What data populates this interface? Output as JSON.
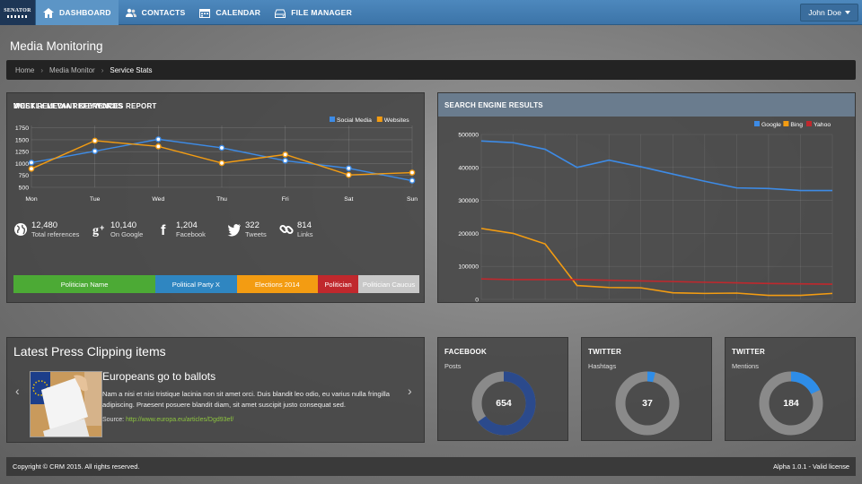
{
  "brand": {
    "logo_text": "SENATOR"
  },
  "nav": {
    "items": [
      {
        "label": "DASHBOARD",
        "icon": "home-icon"
      },
      {
        "label": "CONTACTS",
        "icon": "users-icon"
      },
      {
        "label": "CALENDAR",
        "icon": "calendar-icon"
      },
      {
        "label": "FILE MANAGER",
        "icon": "drive-icon"
      }
    ],
    "active": "DASHBOARD",
    "user": "John Doe"
  },
  "page": {
    "title": "Media Monitoring"
  },
  "breadcrumb": {
    "items": [
      "Home",
      "Media Monitor"
    ],
    "current": "Service Stats"
  },
  "weekly": {
    "title": "WEEKLY MEDIA REFERENCES REPORT",
    "stats": [
      {
        "icon": "globe-icon",
        "value": "12,480",
        "label": "Total references"
      },
      {
        "icon": "google-plus-icon",
        "value": "10,140",
        "label": "On Google"
      },
      {
        "icon": "facebook-icon",
        "value": "1,204",
        "label": "Facebook"
      },
      {
        "icon": "twitter-icon",
        "value": "322",
        "label": "Tweets"
      },
      {
        "icon": "link-icon",
        "value": "814",
        "label": "Links"
      }
    ],
    "keywords_title": "MOST RELEVANT KEYWORDS",
    "keywords": [
      {
        "label": "Politician Name",
        "color": "#4caa35",
        "share": 35
      },
      {
        "label": "Political Party X",
        "color": "#2f86c1",
        "share": 20
      },
      {
        "label": "Elections 2014",
        "color": "#f39c12",
        "share": 20
      },
      {
        "label": "Politician",
        "color": "#c0282d",
        "share": 10
      },
      {
        "label": "Politician Caucus",
        "color": "#c8c8c8",
        "share": 15
      }
    ]
  },
  "search": {
    "title": "SEARCH ENGINE RESULTS"
  },
  "press": {
    "title": "Latest Press Clipping items",
    "article_title": "Europeans go to ballots",
    "article_body": "Nam a nisi et nisi tristique lacinia non sit amet orci. Duis blandit leo odio, eu varius nulla fringilla adipiscing. Praesent posuere blandit diam, sit amet suscipit justo consequat sed.",
    "source_label": "Source:",
    "source_url": "http://www.europa.eu/articles/Dgd93ef/"
  },
  "minis": [
    {
      "title": "FACEBOOK",
      "subtitle": "Posts",
      "value": "654",
      "fraction": 0.65,
      "color": "#2b4a8c"
    },
    {
      "title": "TWITTER",
      "subtitle": "Hashtags",
      "value": "37",
      "fraction": 0.04,
      "color": "#2e8de8"
    },
    {
      "title": "TWITTER",
      "subtitle": "Mentions",
      "value": "184",
      "fraction": 0.18,
      "color": "#2e8de8"
    }
  ],
  "footer": {
    "left": "Copyright © CRM 2015. All rights reserved.",
    "right": "Alpha 1.0.1 - Valid license"
  },
  "chart_data": [
    {
      "type": "line",
      "categories": [
        "Mon",
        "Tue",
        "Wed",
        "Thu",
        "Fri",
        "Sat",
        "Sun"
      ],
      "series": [
        {
          "name": "Social Media",
          "color": "#3d8be6",
          "values": [
            1020,
            1260,
            1510,
            1330,
            1060,
            900,
            640
          ]
        },
        {
          "name": "Websites",
          "color": "#f39c12",
          "values": [
            890,
            1480,
            1360,
            1010,
            1190,
            760,
            810
          ]
        }
      ],
      "yticks": [
        500,
        750,
        1000,
        1250,
        1500,
        1750
      ],
      "ylim": [
        500,
        1800
      ],
      "legend": "top-right",
      "grid": true
    },
    {
      "type": "line",
      "x": [
        1,
        2,
        3,
        4,
        5,
        6,
        7,
        8,
        9,
        10,
        11,
        12
      ],
      "series": [
        {
          "name": "Google",
          "color": "#3d8be6",
          "values": [
            480000,
            475000,
            455000,
            400000,
            422000,
            402000,
            380000,
            358000,
            338000,
            336000,
            330000,
            330000
          ]
        },
        {
          "name": "Bing",
          "color": "#f39c12",
          "values": [
            215000,
            200000,
            168000,
            42000,
            36000,
            35000,
            20000,
            18000,
            19000,
            12000,
            12000,
            18000
          ]
        },
        {
          "name": "Yahoo",
          "color": "#c0282d",
          "values": [
            62000,
            60000,
            60000,
            60000,
            58000,
            56000,
            54000,
            52000,
            50000,
            48000,
            47000,
            46000
          ]
        }
      ],
      "yticks": [
        0,
        100000,
        200000,
        300000,
        400000,
        500000
      ],
      "ylim": [
        0,
        500000
      ],
      "legend": "top-right",
      "grid": true
    }
  ]
}
